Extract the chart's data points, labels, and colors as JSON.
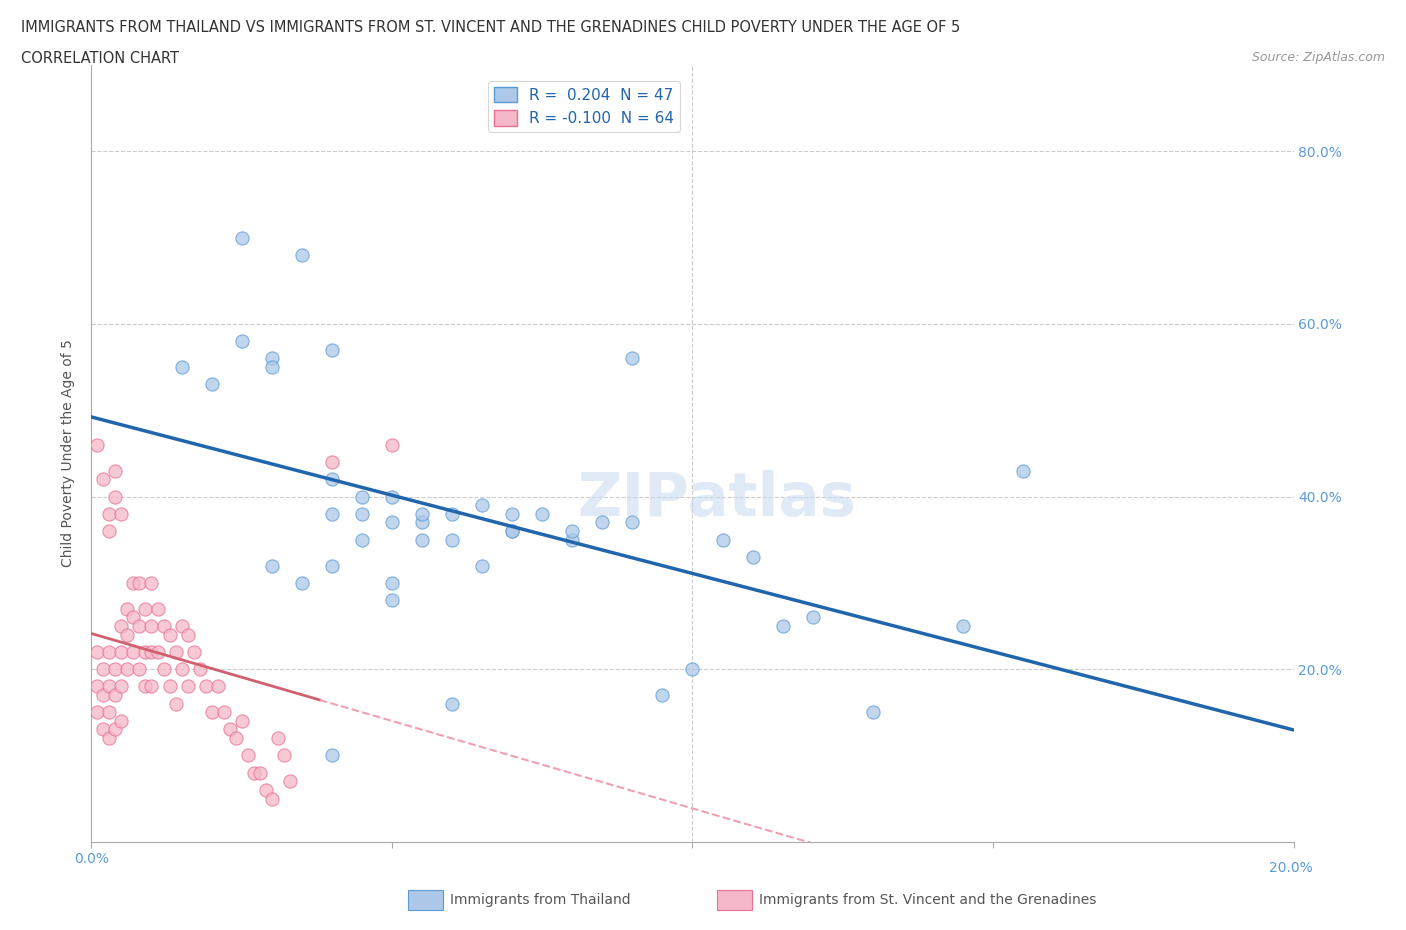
{
  "title_line1": "IMMIGRANTS FROM THAILAND VS IMMIGRANTS FROM ST. VINCENT AND THE GRENADINES CHILD POVERTY UNDER THE AGE OF 5",
  "title_line2": "CORRELATION CHART",
  "source": "Source: ZipAtlas.com",
  "ylabel": "Child Poverty Under the Age of 5",
  "xlim": [
    0.0,
    0.2
  ],
  "ylim": [
    0.0,
    0.9
  ],
  "watermark": "ZIPatlas",
  "blue_color_face": "#adc8e8",
  "blue_color_edge": "#5b9bd5",
  "pink_color_face": "#f5b8c8",
  "pink_color_edge": "#e87090",
  "trend_blue_color": "#2166ac",
  "trend_pink_solid": "#d06070",
  "trend_pink_dash": "#f0a0b0",
  "blue_scatter_x": [
    0.025,
    0.035,
    0.015,
    0.02,
    0.025,
    0.03,
    0.03,
    0.04,
    0.04,
    0.04,
    0.045,
    0.045,
    0.05,
    0.05,
    0.055,
    0.055,
    0.06,
    0.065,
    0.07,
    0.075,
    0.08,
    0.09,
    0.1,
    0.105,
    0.11,
    0.115,
    0.12,
    0.145,
    0.155,
    0.03,
    0.035,
    0.04,
    0.045,
    0.05,
    0.05,
    0.055,
    0.06,
    0.065,
    0.07,
    0.07,
    0.08,
    0.085,
    0.095,
    0.09,
    0.13,
    0.04,
    0.06
  ],
  "blue_scatter_y": [
    0.7,
    0.68,
    0.55,
    0.53,
    0.58,
    0.56,
    0.55,
    0.57,
    0.38,
    0.42,
    0.38,
    0.4,
    0.37,
    0.4,
    0.37,
    0.35,
    0.38,
    0.39,
    0.36,
    0.38,
    0.35,
    0.37,
    0.2,
    0.35,
    0.33,
    0.25,
    0.26,
    0.25,
    0.43,
    0.32,
    0.3,
    0.32,
    0.35,
    0.28,
    0.3,
    0.38,
    0.35,
    0.32,
    0.36,
    0.38,
    0.36,
    0.37,
    0.17,
    0.56,
    0.15,
    0.1,
    0.16
  ],
  "pink_scatter_x": [
    0.001,
    0.001,
    0.001,
    0.002,
    0.002,
    0.002,
    0.003,
    0.003,
    0.003,
    0.003,
    0.004,
    0.004,
    0.004,
    0.005,
    0.005,
    0.005,
    0.005,
    0.006,
    0.006,
    0.006,
    0.007,
    0.007,
    0.007,
    0.008,
    0.008,
    0.008,
    0.009,
    0.009,
    0.009,
    0.01,
    0.01,
    0.01,
    0.01,
    0.011,
    0.011,
    0.012,
    0.012,
    0.013,
    0.013,
    0.014,
    0.014,
    0.015,
    0.015,
    0.016,
    0.016,
    0.017,
    0.018,
    0.019,
    0.02,
    0.021,
    0.022,
    0.023,
    0.024,
    0.025,
    0.026,
    0.027,
    0.028,
    0.029,
    0.03,
    0.031,
    0.032,
    0.033,
    0.04,
    0.05
  ],
  "pink_scatter_y": [
    0.22,
    0.18,
    0.15,
    0.2,
    0.17,
    0.13,
    0.22,
    0.18,
    0.15,
    0.12,
    0.2,
    0.17,
    0.13,
    0.25,
    0.22,
    0.18,
    0.14,
    0.27,
    0.24,
    0.2,
    0.3,
    0.26,
    0.22,
    0.3,
    0.25,
    0.2,
    0.27,
    0.22,
    0.18,
    0.3,
    0.25,
    0.22,
    0.18,
    0.27,
    0.22,
    0.25,
    0.2,
    0.24,
    0.18,
    0.22,
    0.16,
    0.25,
    0.2,
    0.24,
    0.18,
    0.22,
    0.2,
    0.18,
    0.15,
    0.18,
    0.15,
    0.13,
    0.12,
    0.14,
    0.1,
    0.08,
    0.08,
    0.06,
    0.05,
    0.12,
    0.1,
    0.07,
    0.44,
    0.46
  ],
  "pink_high_x": [
    0.001,
    0.002,
    0.003,
    0.003,
    0.004,
    0.004,
    0.005
  ],
  "pink_high_y": [
    0.46,
    0.42,
    0.38,
    0.36,
    0.43,
    0.4,
    0.38
  ]
}
